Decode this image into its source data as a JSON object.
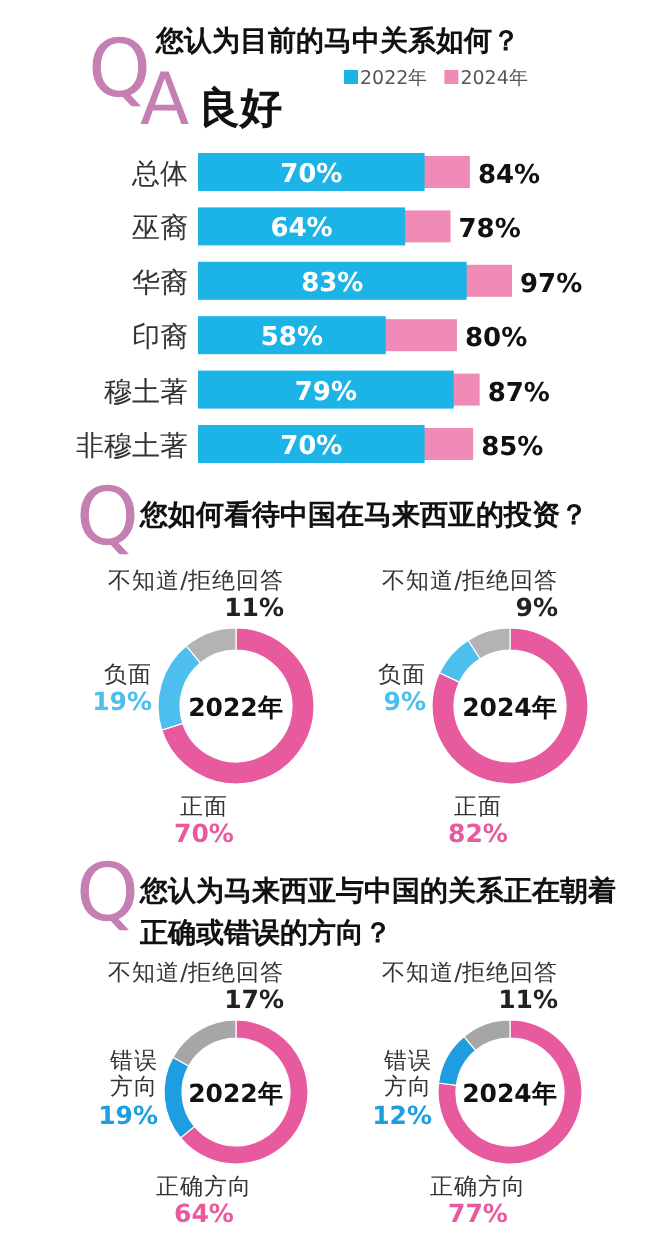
{
  "chart_data": [
    {
      "type": "bar",
      "orientation": "horizontal",
      "title": "您认为目前的马中关系如何？",
      "subtitle": "良好",
      "annotations": [
        "Q",
        "A"
      ],
      "categories": [
        "总体",
        "巫裔",
        "华裔",
        "印裔",
        "穆土著",
        "非穆土著"
      ],
      "series": [
        {
          "name": "2022年",
          "color": "#1cb4e6",
          "values": [
            70,
            64,
            83,
            58,
            79,
            70
          ],
          "value_labels": [
            "70%",
            "64%",
            "83%",
            "58%",
            "79%",
            "70%"
          ]
        },
        {
          "name": "2024年",
          "color": "#ef8bb6",
          "values": [
            84,
            78,
            97,
            80,
            87,
            85
          ],
          "value_labels": [
            "84%",
            "78%",
            "97%",
            "80%",
            "87%",
            "85%"
          ]
        }
      ],
      "legend": "top right"
    },
    {
      "type": "donut",
      "title": "您如何看待中国在马来西亚的投资？",
      "annotations": [
        "Q"
      ],
      "subtitle": "2022年",
      "categories": [
        "正面",
        "负面",
        "不知道/拒绝回答"
      ],
      "values": [
        70,
        19,
        11
      ],
      "value_labels": [
        "70%",
        "19%",
        "11%"
      ],
      "colors": [
        "#e85a9e",
        "#4cbfee",
        "#b3b3b3"
      ]
    },
    {
      "type": "donut",
      "subtitle": "2024年",
      "categories": [
        "正面",
        "负面",
        "不知道/拒绝回答"
      ],
      "values": [
        82,
        9,
        9
      ],
      "value_labels": [
        "82%",
        "9%",
        "9%"
      ],
      "colors": [
        "#e85a9e",
        "#4cbfee",
        "#b3b3b3"
      ]
    },
    {
      "type": "donut",
      "title": "您认为马来西亚与中国的关系正在朝着正确或错误的方向？",
      "annotations": [
        "Q"
      ],
      "subtitle": "2022年",
      "categories": [
        "正确方向",
        "错误方向",
        "不知道/拒绝回答"
      ],
      "values": [
        64,
        19,
        17
      ],
      "value_labels": [
        "64%",
        "19%",
        "17%"
      ],
      "colors": [
        "#e85a9e",
        "#1e9ee0",
        "#a6a6a6"
      ]
    },
    {
      "type": "donut",
      "subtitle": "2024年",
      "categories": [
        "正确方向",
        "错误方向",
        "不知道/拒绝回答"
      ],
      "values": [
        77,
        12,
        11
      ],
      "value_labels": [
        "77%",
        "12%",
        "11%"
      ],
      "colors": [
        "#e85a9e",
        "#1e9ee0",
        "#a6a6a6"
      ]
    }
  ]
}
